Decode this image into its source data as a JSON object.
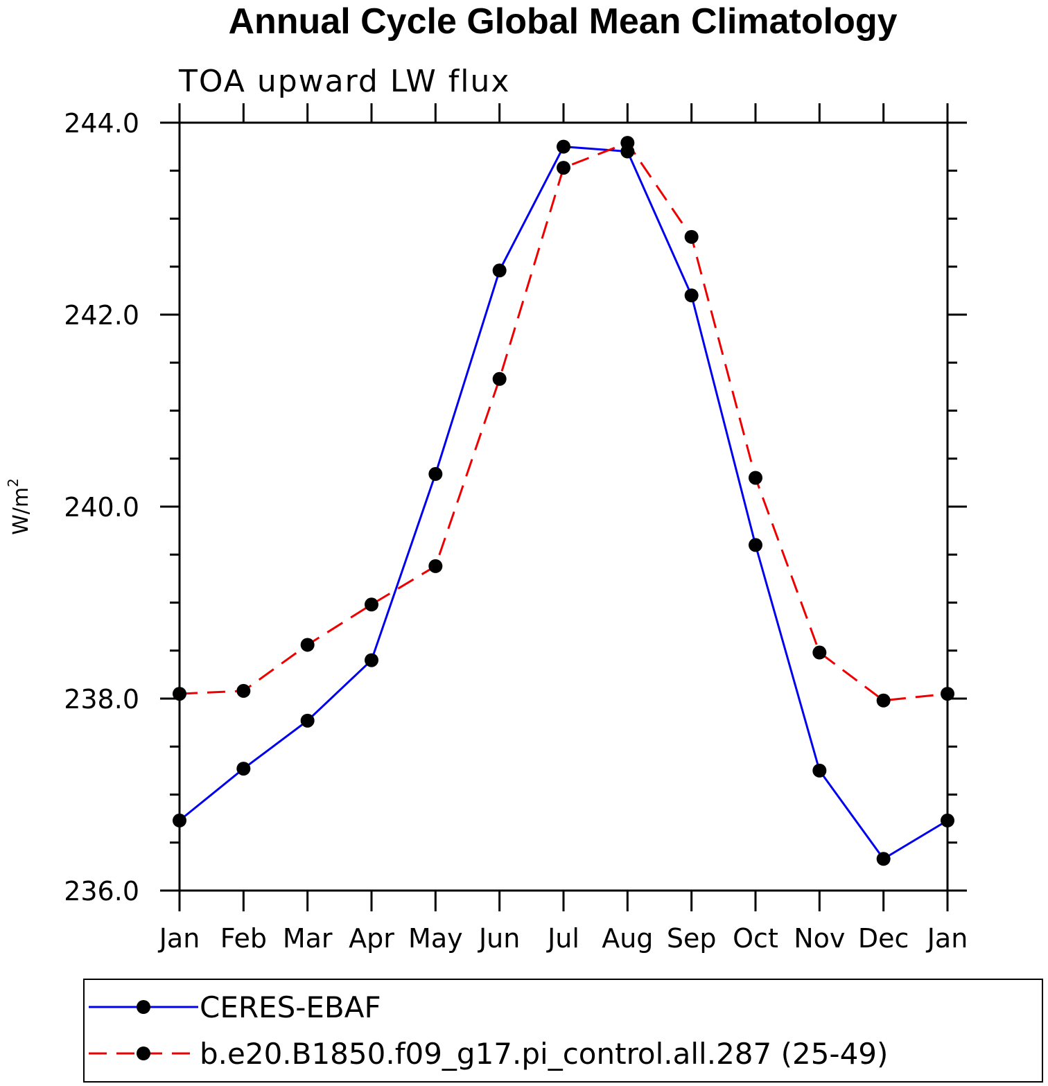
{
  "chart_data": {
    "type": "line",
    "title": "Annual Cycle Global Mean Climatology",
    "subtitle": "TOA upward LW flux",
    "ylabel": "W/m",
    "ylabel_superscript": "2",
    "xlabel": "",
    "categories": [
      "Jan",
      "Feb",
      "Mar",
      "Apr",
      "May",
      "Jun",
      "Jul",
      "Aug",
      "Sep",
      "Oct",
      "Nov",
      "Dec",
      "Jan"
    ],
    "ylim": [
      236.0,
      244.0
    ],
    "yticks": [
      236.0,
      238.0,
      240.0,
      242.0,
      244.0
    ],
    "ytick_labels": [
      "236.0",
      "238.0",
      "240.0",
      "242.0",
      "244.0"
    ],
    "grid": false,
    "legend_position": "bottom",
    "series": [
      {
        "name": "CERES-EBAF",
        "color": "#0000ee",
        "line_style": "solid",
        "marker": "filled-circle",
        "values": [
          236.73,
          237.27,
          237.77,
          238.4,
          240.34,
          242.46,
          243.75,
          243.7,
          242.2,
          239.6,
          237.25,
          236.33,
          236.73
        ]
      },
      {
        "name": "b.e20.B1850.f09_g17.pi_control.all.287 (25-49)",
        "color": "#ee0000",
        "line_style": "dashed",
        "marker": "filled-circle",
        "values": [
          238.05,
          238.08,
          238.56,
          238.98,
          239.38,
          241.33,
          243.53,
          243.79,
          242.81,
          240.3,
          238.48,
          237.98,
          238.05
        ]
      }
    ]
  }
}
